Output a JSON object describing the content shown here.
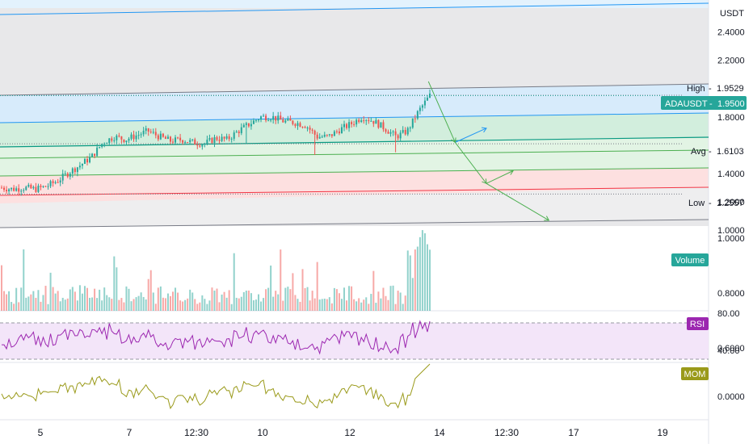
{
  "currency": {
    "label": "USDT"
  },
  "symbol": {
    "ticker": "ADAUSDT",
    "value_label": "1.9500",
    "color": "#26a69a"
  },
  "markers": {
    "high": {
      "label": "High",
      "value_label": "1.9529",
      "value": 1.9529
    },
    "avg": {
      "label": "Avg",
      "value_label": "1.6103",
      "value": 1.6103
    },
    "low": {
      "label": "Low",
      "value_label": "1.2557",
      "value": 1.2557
    }
  },
  "indicators": {
    "volume": {
      "label": "Volume",
      "color": "#26a69a"
    },
    "rsi": {
      "label": "RSI",
      "color": "#9c27b0"
    },
    "mom": {
      "label": "MOM",
      "color": "#9a9a1a"
    }
  },
  "colors": {
    "up": "#26a69a",
    "down": "#ef5350",
    "channel_blue": "#2196f3",
    "channel_green": "#4caf50",
    "channel_red": "#f23645",
    "gray_zone": "#e8e8ea"
  },
  "chart_data": [
    {
      "type": "candlestick",
      "title": "ADAUSDT",
      "ylabel": "USDT",
      "ylim": [
        1.1,
        2.65
      ],
      "x_ticks": [
        "5",
        "7",
        "12:30",
        "10",
        "12",
        "14",
        "12:30",
        "17",
        "19"
      ],
      "y_ticks": [
        {
          "label": "2.4000",
          "value": 2.4
        },
        {
          "label": "2.2000",
          "value": 2.2
        },
        {
          "label": "1.8000",
          "value": 1.8
        },
        {
          "label": "1.4000",
          "value": 1.4
        },
        {
          "label": "1.2000",
          "value": 1.2
        },
        {
          "label": "1.0000",
          "value": 1.0
        }
      ],
      "close_path": [
        1.3,
        1.29,
        1.3,
        1.29,
        1.31,
        1.35,
        1.41,
        1.46,
        1.52,
        1.62,
        1.66,
        1.64,
        1.67,
        1.7,
        1.66,
        1.63,
        1.64,
        1.62,
        1.61,
        1.65,
        1.64,
        1.7,
        1.75,
        1.8,
        1.8,
        1.77,
        1.76,
        1.74,
        1.66,
        1.66,
        1.71,
        1.75,
        1.8,
        1.77,
        1.72,
        1.66,
        1.7,
        1.84,
        1.95
      ],
      "projection": [
        {
          "t": 13.7,
          "v": 2.05
        },
        {
          "t": 14.3,
          "v": 1.62
        },
        {
          "t": 15.0,
          "v": 1.33
        },
        {
          "t": 15.6,
          "v": 1.42
        }
      ]
    },
    {
      "type": "bar",
      "title": "Volume",
      "y_ticks": [
        {
          "label": "1.0000",
          "value": 1.0
        },
        {
          "label": "0.8000",
          "value": 0.8
        },
        {
          "label": "0.6000",
          "value": 0.6
        }
      ],
      "ylim": [
        0.5,
        1.05
      ]
    },
    {
      "type": "line",
      "title": "RSI",
      "y_ticks": [
        {
          "label": "80.00",
          "value": 80
        },
        {
          "label": "40.00",
          "value": 40
        }
      ],
      "ylim": [
        25,
        82
      ],
      "bands": [
        70,
        30
      ]
    },
    {
      "type": "line",
      "title": "MOM",
      "y_ticks": [
        {
          "label": "0.0000",
          "value": 0
        }
      ],
      "ylim": [
        -0.3,
        0.35
      ]
    }
  ]
}
